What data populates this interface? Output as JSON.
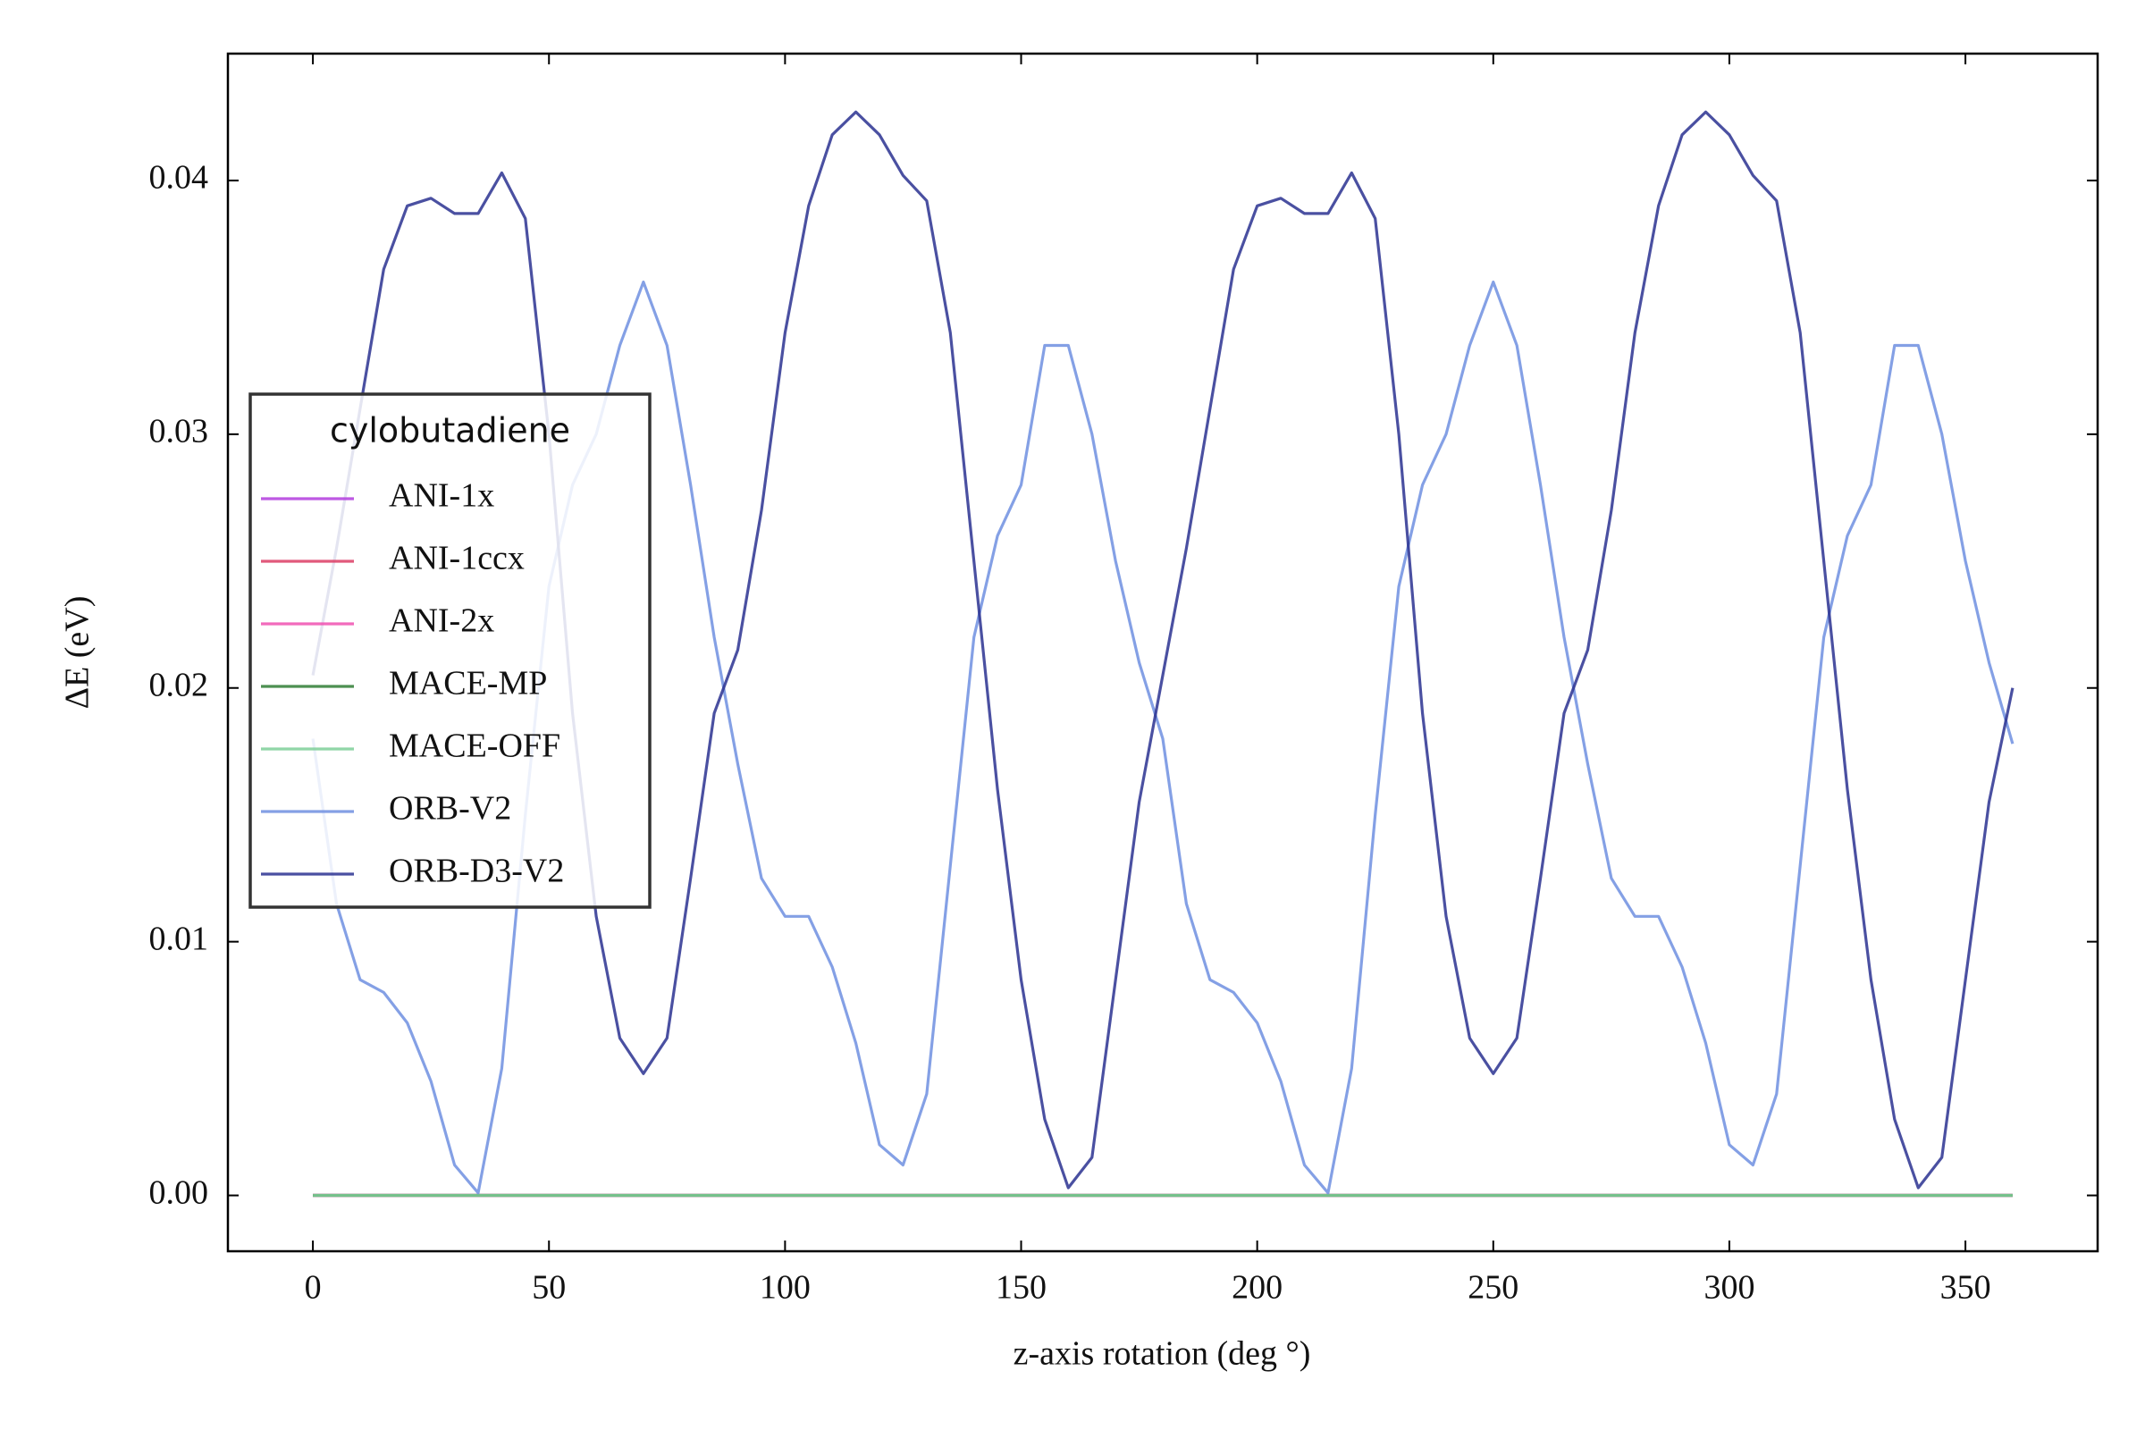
{
  "chart_data": {
    "type": "line",
    "xlabel": "z-axis rotation (deg °)",
    "ylabel": "ΔE  (eV)",
    "legend_title": "cylobutadiene",
    "legend_position": "center left",
    "xlim": [
      -18,
      378
    ],
    "ylim": [
      -0.0022,
      0.045
    ],
    "xticks": [
      0,
      50,
      100,
      150,
      200,
      250,
      300,
      350
    ],
    "yticks": [
      {
        "value": 0,
        "label": "0.00"
      },
      0.01,
      0.02,
      0.03,
      0.04
    ],
    "x": [
      0,
      5,
      10,
      15,
      20,
      25,
      30,
      35,
      40,
      45,
      50,
      55,
      60,
      65,
      70,
      75,
      80,
      85,
      90,
      95,
      100,
      105,
      110,
      115,
      120,
      125,
      130,
      135,
      140,
      145,
      150,
      155,
      160,
      165,
      170,
      175,
      180,
      185,
      190,
      195,
      200,
      205,
      210,
      215,
      220,
      225,
      230,
      235,
      240,
      245,
      250,
      255,
      260,
      265,
      270,
      275,
      280,
      285,
      290,
      295,
      300,
      305,
      310,
      315,
      320,
      325,
      330,
      335,
      340,
      345,
      350,
      355,
      360
    ],
    "series": [
      {
        "name": "ANI-1x",
        "color": "#b23cde",
        "values": [
          0,
          0,
          0,
          0,
          0,
          0,
          0,
          0,
          0,
          0,
          0,
          0,
          0,
          0,
          0,
          0,
          0,
          0,
          0,
          0,
          0,
          0,
          0,
          0,
          0,
          0,
          0,
          0,
          0,
          0,
          0,
          0,
          0,
          0,
          0,
          0,
          0,
          0,
          0,
          0,
          0,
          0,
          0,
          0,
          0,
          0,
          0,
          0,
          0,
          0,
          0,
          0,
          0,
          0,
          0,
          0,
          0,
          0,
          0,
          0,
          0,
          0,
          0,
          0,
          0,
          0,
          0,
          0,
          0,
          0,
          0,
          0,
          0
        ]
      },
      {
        "name": "ANI-1ccx",
        "color": "#dc3c64",
        "values": [
          0,
          0,
          0,
          0,
          0,
          0,
          0,
          0,
          0,
          0,
          0,
          0,
          0,
          0,
          0,
          0,
          0,
          0,
          0,
          0,
          0,
          0,
          0,
          0,
          0,
          0,
          0,
          0,
          0,
          0,
          0,
          0,
          0,
          0,
          0,
          0,
          0,
          0,
          0,
          0,
          0,
          0,
          0,
          0,
          0,
          0,
          0,
          0,
          0,
          0,
          0,
          0,
          0,
          0,
          0,
          0,
          0,
          0,
          0,
          0,
          0,
          0,
          0,
          0,
          0,
          0,
          0,
          0,
          0,
          0,
          0,
          0,
          0
        ]
      },
      {
        "name": "ANI-2x",
        "color": "#f050b0",
        "values": [
          0,
          0,
          0,
          0,
          0,
          0,
          0,
          0,
          0,
          0,
          0,
          0,
          0,
          0,
          0,
          0,
          0,
          0,
          0,
          0,
          0,
          0,
          0,
          0,
          0,
          0,
          0,
          0,
          0,
          0,
          0,
          0,
          0,
          0,
          0,
          0,
          0,
          0,
          0,
          0,
          0,
          0,
          0,
          0,
          0,
          0,
          0,
          0,
          0,
          0,
          0,
          0,
          0,
          0,
          0,
          0,
          0,
          0,
          0,
          0,
          0,
          0,
          0,
          0,
          0,
          0,
          0,
          0,
          0,
          0,
          0,
          0,
          0
        ]
      },
      {
        "name": "MACE-MP",
        "color": "#2e7d32",
        "values": [
          0,
          0,
          0,
          0,
          0,
          0,
          0,
          0,
          0,
          0,
          0,
          0,
          0,
          0,
          0,
          0,
          0,
          0,
          0,
          0,
          0,
          0,
          0,
          0,
          0,
          0,
          0,
          0,
          0,
          0,
          0,
          0,
          0,
          0,
          0,
          0,
          0,
          0,
          0,
          0,
          0,
          0,
          0,
          0,
          0,
          0,
          0,
          0,
          0,
          0,
          0,
          0,
          0,
          0,
          0,
          0,
          0,
          0,
          0,
          0,
          0,
          0,
          0,
          0,
          0,
          0,
          0,
          0,
          0,
          0,
          0,
          0,
          0
        ]
      },
      {
        "name": "MACE-OFF",
        "color": "#7ccf98",
        "values": [
          0,
          0,
          0,
          0,
          0,
          0,
          0,
          0,
          0,
          0,
          0,
          0,
          0,
          0,
          0,
          0,
          0,
          0,
          0,
          0,
          0,
          0,
          0,
          0,
          0,
          0,
          0,
          0,
          0,
          0,
          0,
          0,
          0,
          0,
          0,
          0,
          0,
          0,
          0,
          0,
          0,
          0,
          0,
          0,
          0,
          0,
          0,
          0,
          0,
          0,
          0,
          0,
          0,
          0,
          0,
          0,
          0,
          0,
          0,
          0,
          0,
          0,
          0,
          0,
          0,
          0,
          0,
          0,
          0,
          0,
          0,
          0,
          0
        ]
      },
      {
        "name": "ORB-V2",
        "color": "#6f8fe0",
        "values": [
          0.018,
          0.0115,
          0.0085,
          0.008,
          0.0068,
          0.0045,
          0.0012,
          0.0001,
          0.005,
          0.015,
          0.024,
          0.028,
          0.03,
          0.0335,
          0.036,
          0.0335,
          0.028,
          0.022,
          0.017,
          0.0125,
          0.011,
          0.011,
          0.009,
          0.006,
          0.002,
          0.0012,
          0.004,
          0.013,
          0.022,
          0.026,
          0.028,
          0.0335,
          0.0335,
          0.03,
          0.025,
          0.021,
          0.018,
          0.0115,
          0.0085,
          0.008,
          0.0068,
          0.0045,
          0.0012,
          0.0001,
          0.005,
          0.015,
          0.024,
          0.028,
          0.03,
          0.0335,
          0.036,
          0.0335,
          0.028,
          0.022,
          0.017,
          0.0125,
          0.011,
          0.011,
          0.009,
          0.006,
          0.002,
          0.0012,
          0.004,
          0.013,
          0.022,
          0.026,
          0.028,
          0.0335,
          0.0335,
          0.03,
          0.025,
          0.021,
          0.0178
        ]
      },
      {
        "name": "ORB-D3-V2",
        "color": "#2a3190",
        "values": [
          0.0205,
          0.0255,
          0.031,
          0.0365,
          0.039,
          0.0393,
          0.0387,
          0.0387,
          0.0403,
          0.0385,
          0.03,
          0.019,
          0.011,
          0.0062,
          0.0048,
          0.0062,
          0.0125,
          0.019,
          0.0215,
          0.027,
          0.034,
          0.039,
          0.0418,
          0.0427,
          0.0418,
          0.0402,
          0.0392,
          0.034,
          0.025,
          0.016,
          0.0085,
          0.003,
          0.0003,
          0.0015,
          0.0085,
          0.0155,
          0.0205,
          0.0255,
          0.031,
          0.0365,
          0.039,
          0.0393,
          0.0387,
          0.0387,
          0.0403,
          0.0385,
          0.03,
          0.019,
          0.011,
          0.0062,
          0.0048,
          0.0062,
          0.0125,
          0.019,
          0.0215,
          0.027,
          0.034,
          0.039,
          0.0418,
          0.0427,
          0.0418,
          0.0402,
          0.0392,
          0.034,
          0.025,
          0.016,
          0.0085,
          0.003,
          0.0003,
          0.0015,
          0.0085,
          0.0155,
          0.02
        ]
      }
    ]
  }
}
